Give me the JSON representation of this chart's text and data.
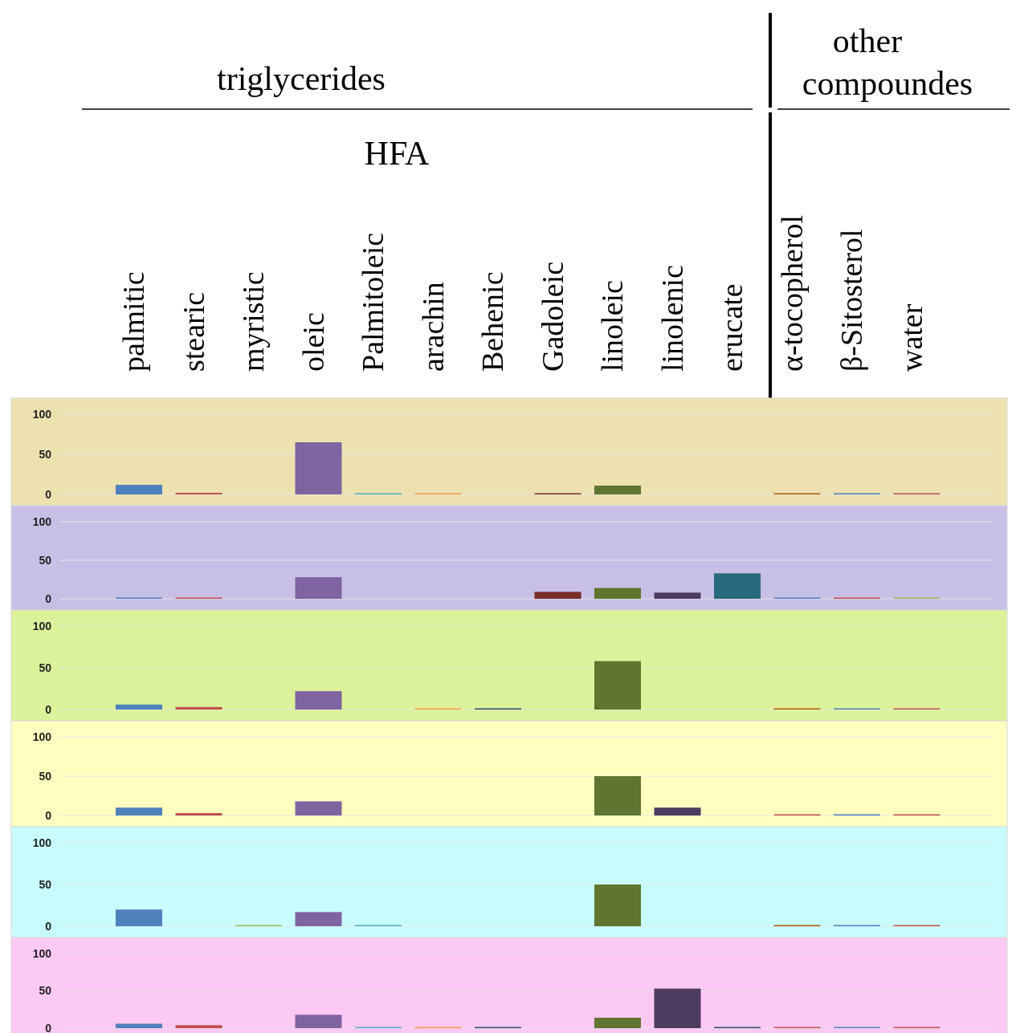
{
  "chart_data": [
    {
      "type": "bar",
      "categories": [
        "palmitic",
        "stearic",
        "myristic",
        "oleic",
        "Palmitoleic",
        "arachin",
        "Behenic",
        "Gadoleic",
        "linoleic",
        "linolenic",
        "erucate",
        "α-tocopherol",
        "β-Sitosterol",
        "water"
      ],
      "values": [
        12,
        2,
        null,
        65,
        1,
        1,
        null,
        1,
        11,
        null,
        null,
        1,
        1,
        1
      ],
      "colors": [
        "#4f81bd",
        "#c0504d",
        null,
        "#8064a2",
        "#4bacc6",
        "#f79646",
        null,
        "#772c2a",
        "#5f7530",
        null,
        null,
        "#b65708",
        "#4f81bd",
        "#c0504d"
      ],
      "ylim": [
        0,
        100
      ],
      "yticks": [
        0,
        50,
        100
      ],
      "grid": "y",
      "annotations": [
        "triglycerides",
        "HFA",
        "other compoundes"
      ]
    },
    {
      "type": "bar",
      "values": [
        1,
        1,
        null,
        28,
        null,
        null,
        null,
        9,
        14,
        8,
        33,
        1,
        1,
        1
      ],
      "categories": [
        null,
        null,
        null,
        null,
        null,
        null,
        null,
        null,
        null,
        null,
        null,
        null,
        null,
        null
      ],
      "colors": [
        "#4f81bd",
        "#c0504d",
        null,
        "#8064a2",
        null,
        null,
        null,
        "#772c2a",
        "#5f7530",
        "#4d3b62",
        "#276a7c",
        "#4f81bd",
        "#c0504d",
        "#9bbb59"
      ],
      "ylim": [
        0,
        100
      ],
      "yticks": [
        0,
        50,
        100
      ],
      "grid": "y",
      "tick_labels": "y"
    },
    {
      "type": "bar",
      "values": [
        6,
        3,
        null,
        22,
        null,
        1,
        1,
        null,
        58,
        null,
        null,
        1,
        1,
        1
      ],
      "categories": [
        null,
        null,
        null,
        null,
        null,
        null,
        null,
        null,
        null,
        null,
        null,
        null,
        null,
        null
      ],
      "colors": [
        "#4f81bd",
        "#c0504d",
        null,
        "#8064a2",
        null,
        "#f79646",
        "#2c4d75",
        null,
        "#5f7530",
        null,
        null,
        "#b65708",
        "#4f81bd",
        "#c0504d"
      ],
      "ylim": [
        0,
        100
      ],
      "yticks": [
        0,
        50,
        100
      ],
      "grid": "y",
      "tick_labels": "y"
    },
    {
      "type": "bar",
      "values": [
        10,
        3,
        null,
        18,
        null,
        null,
        null,
        null,
        50,
        10,
        null,
        1,
        1,
        1
      ],
      "categories": [
        null,
        null,
        null,
        null,
        null,
        null,
        null,
        null,
        null,
        null,
        null,
        null,
        null,
        null
      ],
      "colors": [
        "#4f81bd",
        "#c0504d",
        null,
        "#8064a2",
        null,
        null,
        null,
        null,
        "#5f7530",
        "#4d3b62",
        null,
        "#c0504d",
        "#4f81bd",
        "#c0504d"
      ],
      "ylim": [
        0,
        100
      ],
      "yticks": [
        0,
        50,
        100
      ],
      "grid": "y",
      "tick_labels": "y"
    },
    {
      "type": "bar",
      "values": [
        20,
        null,
        1,
        17,
        1,
        null,
        null,
        null,
        50,
        null,
        null,
        1,
        1,
        1
      ],
      "categories": [
        null,
        null,
        null,
        null,
        null,
        null,
        null,
        null,
        null,
        null,
        null,
        null,
        null,
        null
      ],
      "colors": [
        "#4f81bd",
        null,
        "#9bbb59",
        "#8064a2",
        "#4bacc6",
        null,
        null,
        null,
        "#5f7530",
        null,
        null,
        "#b65708",
        "#4f81bd",
        "#c0504d"
      ],
      "ylim": [
        0,
        100
      ],
      "yticks": [
        0,
        50,
        100
      ],
      "grid": "y",
      "tick_labels": "y"
    },
    {
      "type": "bar",
      "values": [
        6,
        4,
        null,
        18,
        1,
        1,
        1,
        null,
        14,
        53,
        1,
        1,
        1,
        1
      ],
      "categories": [
        null,
        null,
        null,
        null,
        null,
        null,
        null,
        null,
        null,
        null,
        null,
        null,
        null,
        null
      ],
      "colors": [
        "#4f81bd",
        "#c0504d",
        null,
        "#8064a2",
        "#4bacc6",
        "#f79646",
        "#2c4d75",
        null,
        "#5f7530",
        "#4d3b62",
        "#2c4d75",
        "#c0504d",
        "#4f81bd",
        "#c0504d"
      ],
      "ylim": [
        0,
        100
      ],
      "yticks": [
        0,
        50,
        100
      ],
      "grid": "y",
      "tick_labels": "y"
    }
  ]
}
